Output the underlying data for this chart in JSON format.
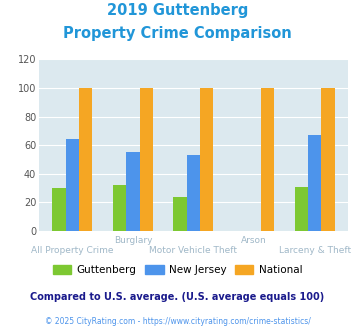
{
  "title_line1": "2019 Guttenberg",
  "title_line2": "Property Crime Comparison",
  "categories": [
    "All Property Crime",
    "Burglary",
    "Motor Vehicle Theft",
    "Arson",
    "Larceny & Theft"
  ],
  "guttenberg": [
    30,
    32,
    24,
    0,
    31
  ],
  "new_jersey": [
    64,
    55,
    53,
    0,
    67
  ],
  "national": [
    100,
    100,
    100,
    100,
    100
  ],
  "ylim": [
    0,
    120
  ],
  "yticks": [
    0,
    20,
    40,
    60,
    80,
    100,
    120
  ],
  "color_guttenberg": "#7dc832",
  "color_nj": "#4d94eb",
  "color_national": "#f5a623",
  "background_color": "#dce9ef",
  "title_color": "#2196d8",
  "xlabels_top": [
    [
      1,
      "Burglary"
    ],
    [
      3,
      "Arson"
    ]
  ],
  "xlabels_bottom": [
    [
      0,
      "All Property Crime"
    ],
    [
      2,
      "Motor Vehicle Theft"
    ],
    [
      4,
      "Larceny & Theft"
    ]
  ],
  "xlabel_color": "#a0b8c8",
  "footnote_text": "Compared to U.S. average. (U.S. average equals 100)",
  "footnote_color": "#1a1a8c",
  "copyright_text": "© 2025 CityRating.com - https://www.cityrating.com/crime-statistics/",
  "copyright_color": "#4d94eb",
  "legend_labels": [
    "Guttenberg",
    "New Jersey",
    "National"
  ],
  "bar_width": 0.22
}
